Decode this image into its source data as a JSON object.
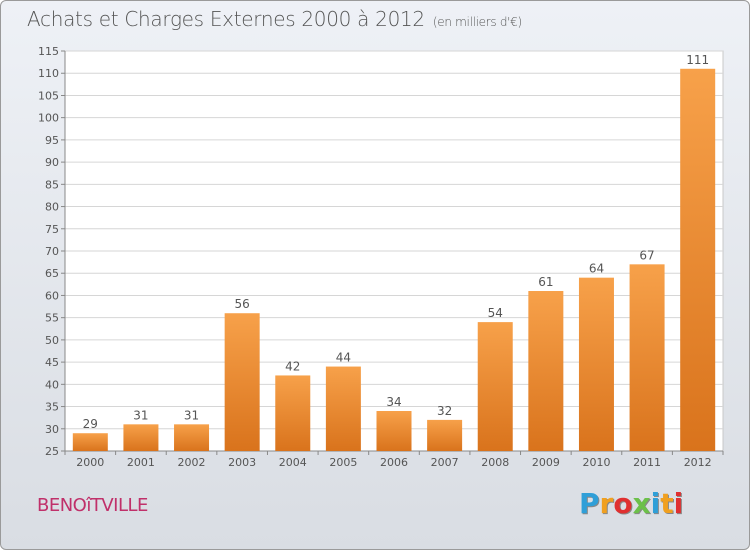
{
  "title": "Achats et Charges Externes 2000 à 2012",
  "subtitle": "(en milliers d'€)",
  "commune": "BENOîTVILLE",
  "brand": {
    "text": "Proxiti",
    "letters": [
      {
        "ch": "P",
        "color": "#2f9fd8"
      },
      {
        "ch": "r",
        "color": "#f0a020"
      },
      {
        "ch": "o",
        "color": "#e03030"
      },
      {
        "ch": "x",
        "color": "#6cc04a"
      },
      {
        "ch": "i",
        "color": "#2f9fd8"
      },
      {
        "ch": "t",
        "color": "#f0a020"
      },
      {
        "ch": "i",
        "color": "#e03030"
      }
    ]
  },
  "colors": {
    "bar_top": "#f7a14a",
    "bar_bottom": "#d9731c",
    "text": "#555555",
    "commune": "#c0306a"
  },
  "chart_data": {
    "type": "bar",
    "categories": [
      "2000",
      "2001",
      "2002",
      "2003",
      "2004",
      "2005",
      "2006",
      "2007",
      "2008",
      "2009",
      "2010",
      "2011",
      "2012"
    ],
    "values": [
      29,
      31,
      31,
      56,
      42,
      44,
      34,
      32,
      54,
      61,
      64,
      67,
      111
    ],
    "ylim": [
      25,
      115
    ],
    "yticks": [
      25,
      30,
      35,
      40,
      45,
      50,
      55,
      60,
      65,
      70,
      75,
      80,
      85,
      90,
      95,
      100,
      105,
      110,
      115
    ],
    "grid": true,
    "data_labels": true
  }
}
